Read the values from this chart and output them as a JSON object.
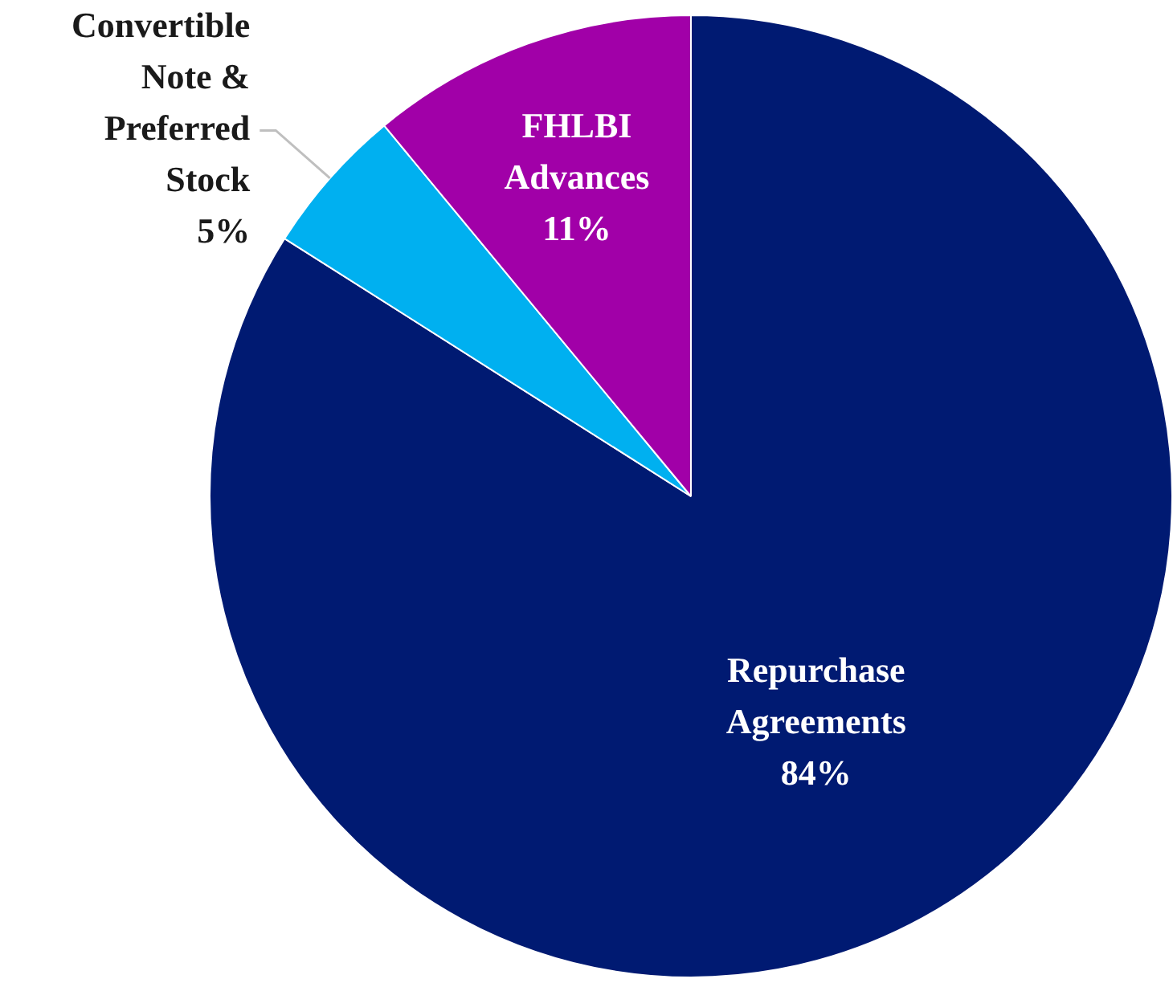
{
  "chart_data": {
    "type": "pie",
    "categories": [
      "Repurchase Agreements",
      "Convertible Note & Preferred Stock",
      "FHLBI Advances"
    ],
    "values": [
      84,
      5,
      11
    ],
    "colors": [
      "#001a72",
      "#00b0f0",
      "#a100a8"
    ],
    "value_labels": [
      "84%",
      "5%",
      "11%"
    ],
    "legend": false
  }
}
